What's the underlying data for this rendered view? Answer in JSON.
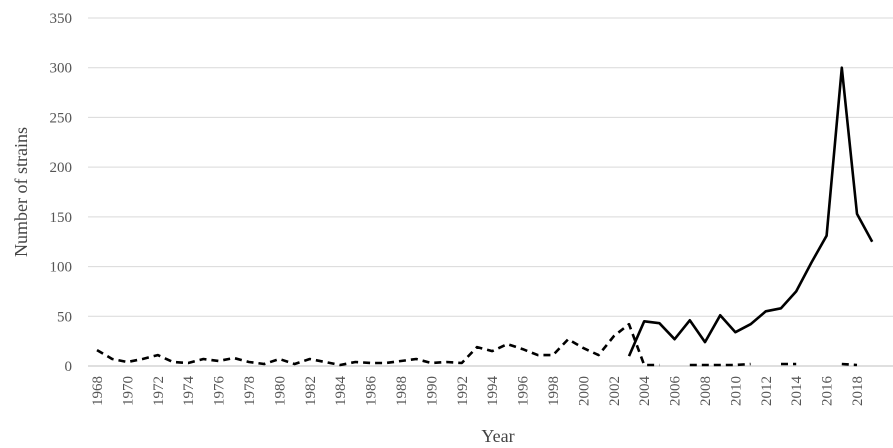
{
  "chart_data": {
    "type": "line",
    "title": "",
    "xlabel": "Year",
    "ylabel": "Number of strains",
    "ylim": [
      0,
      350
    ],
    "yticks": [
      0,
      50,
      100,
      150,
      200,
      250,
      300,
      350
    ],
    "xlim": [
      1968,
      2019
    ],
    "xtick_labels": [
      "1968",
      "1970",
      "1972",
      "1974",
      "1976",
      "1978",
      "1980",
      "1982",
      "1984",
      "1986",
      "1988",
      "1990",
      "1992",
      "1994",
      "1996",
      "1998",
      "2000",
      "2002",
      "2004",
      "2006",
      "2008",
      "2010",
      "2012",
      "2014",
      "2016",
      "2018"
    ],
    "grid": "horizontal",
    "legend": "none",
    "series": [
      {
        "style": "dashed",
        "color": "#000000",
        "segments": [
          {
            "x": [
              1968,
              1969,
              1970,
              1971,
              1972,
              1973,
              1974,
              1975,
              1976,
              1977,
              1978,
              1979,
              1980,
              1981,
              1982,
              1983,
              1984,
              1985,
              1986,
              1987,
              1988,
              1989,
              1990,
              1991,
              1992,
              1993,
              1994,
              1995,
              1996,
              1997,
              1998,
              1999,
              2000,
              2001,
              2002,
              2003,
              2004,
              2005
            ],
            "y": [
              16,
              7,
              4,
              7,
              11,
              4,
              3,
              7,
              5,
              8,
              4,
              2,
              7,
              2,
              7,
              4,
              1,
              4,
              3,
              3,
              5,
              7,
              3,
              4,
              3,
              19,
              15,
              22,
              17,
              11,
              11,
              27,
              18,
              11,
              30,
              42,
              1,
              1
            ]
          },
          {
            "x": [
              2007,
              2008,
              2009,
              2010,
              2011
            ],
            "y": [
              1,
              1,
              1,
              1,
              2
            ]
          },
          {
            "x": [
              2013,
              2014
            ],
            "y": [
              2,
              2
            ]
          },
          {
            "x": [
              2017,
              2018
            ],
            "y": [
              2,
              1
            ]
          }
        ]
      },
      {
        "style": "solid",
        "color": "#000000",
        "segments": [
          {
            "x": [
              2003,
              2004,
              2005,
              2006,
              2007,
              2008,
              2009,
              2010,
              2011,
              2012,
              2013,
              2014,
              2015,
              2016,
              2017,
              2018,
              2019
            ],
            "y": [
              10,
              45,
              43,
              27,
              46,
              24,
              51,
              34,
              42,
              55,
              58,
              75,
              104,
              131,
              300,
              153,
              125
            ]
          }
        ]
      }
    ]
  }
}
